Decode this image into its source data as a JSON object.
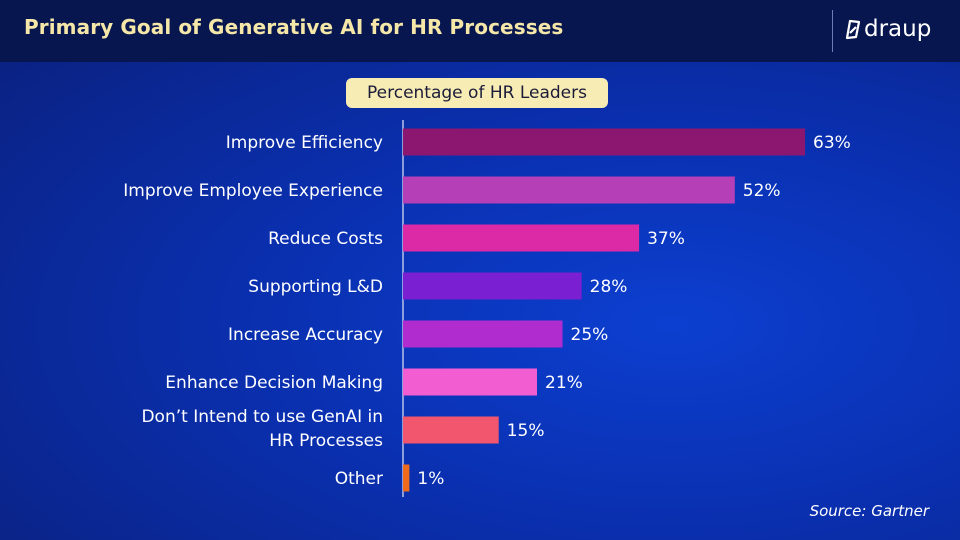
{
  "header": {
    "title": "Primary Goal of Generative AI for HR Processes",
    "logo_text": "draup"
  },
  "legend_pill": "Percentage of HR Leaders",
  "source": "Source: Gartner",
  "chart_data": {
    "type": "bar",
    "orientation": "horizontal",
    "title": "Primary Goal of Generative AI for HR Processes",
    "subtitle": "Percentage of HR Leaders",
    "categories": [
      "Improve Efficiency",
      "Improve Employee Experience",
      "Reduce Costs",
      "Supporting L&D",
      "Increase Accuracy",
      "Enhance Decision Making",
      "Don’t Intend to use GenAI in HR Processes",
      "Other"
    ],
    "values": [
      63,
      52,
      37,
      28,
      25,
      21,
      15,
      1
    ],
    "value_labels": [
      "63%",
      "52%",
      "37%",
      "28%",
      "25%",
      "21%",
      "15%",
      "1%"
    ],
    "unit": "%",
    "colors": [
      "#8c1770",
      "#b43fb6",
      "#dc2aa6",
      "#7a1fd2",
      "#b02ccf",
      "#f25dd1",
      "#f2566e",
      "#ef6a1a"
    ],
    "xlim": [
      0,
      63
    ],
    "grid": false,
    "text_color": "#ffffff",
    "axis_color": "#b8c2ea"
  }
}
